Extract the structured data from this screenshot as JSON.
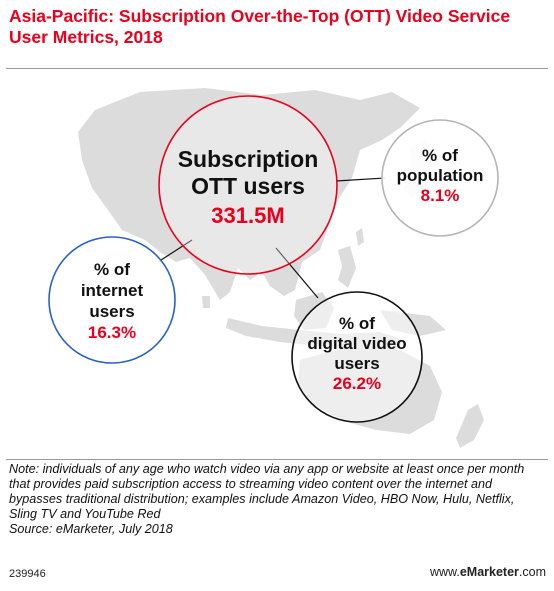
{
  "header": {
    "title": "Asia-Pacific: Subscription Over-the-Top (OTT) Video Service User Metrics, 2018"
  },
  "chart_data": {
    "type": "bubble-infographic",
    "title": "Asia-Pacific: Subscription Over-the-Top (OTT) Video Service User Metrics, 2018",
    "center": {
      "label_line1": "Subscription",
      "label_line2": "OTT users",
      "value": "331.5M",
      "numeric_value_millions": 331.5
    },
    "metrics": [
      {
        "id": "population",
        "label_line1": "% of",
        "label_line2": "population",
        "value": "8.1%",
        "percent": 8.1
      },
      {
        "id": "internet",
        "label_line1": "% of",
        "label_line2": "internet",
        "label_line3": "users",
        "value": "16.3%",
        "percent": 16.3
      },
      {
        "id": "digital-video",
        "label_line1": "% of",
        "label_line2": "digital video",
        "label_line3": "users",
        "value": "26.2%",
        "percent": 26.2
      }
    ]
  },
  "note": {
    "text": "Note: individuals of any age who watch video via any app or website at least once per month that provides paid subscription access to streaming video content over the internet and bypasses traditional distribution; examples include Amazon Video, HBO Now, Hulu, Netflix, Sling TV and YouTube Red",
    "source": "Source: eMarketer, July 2018"
  },
  "footer": {
    "chart_id": "239946",
    "site_prefix": "www.",
    "site_brand": "eMarketer",
    "site_suffix": ".com"
  },
  "colors": {
    "accent_red": "#e8001c",
    "map_gray": "#dcdcdc",
    "circle_gray": "#b5b5b5"
  }
}
